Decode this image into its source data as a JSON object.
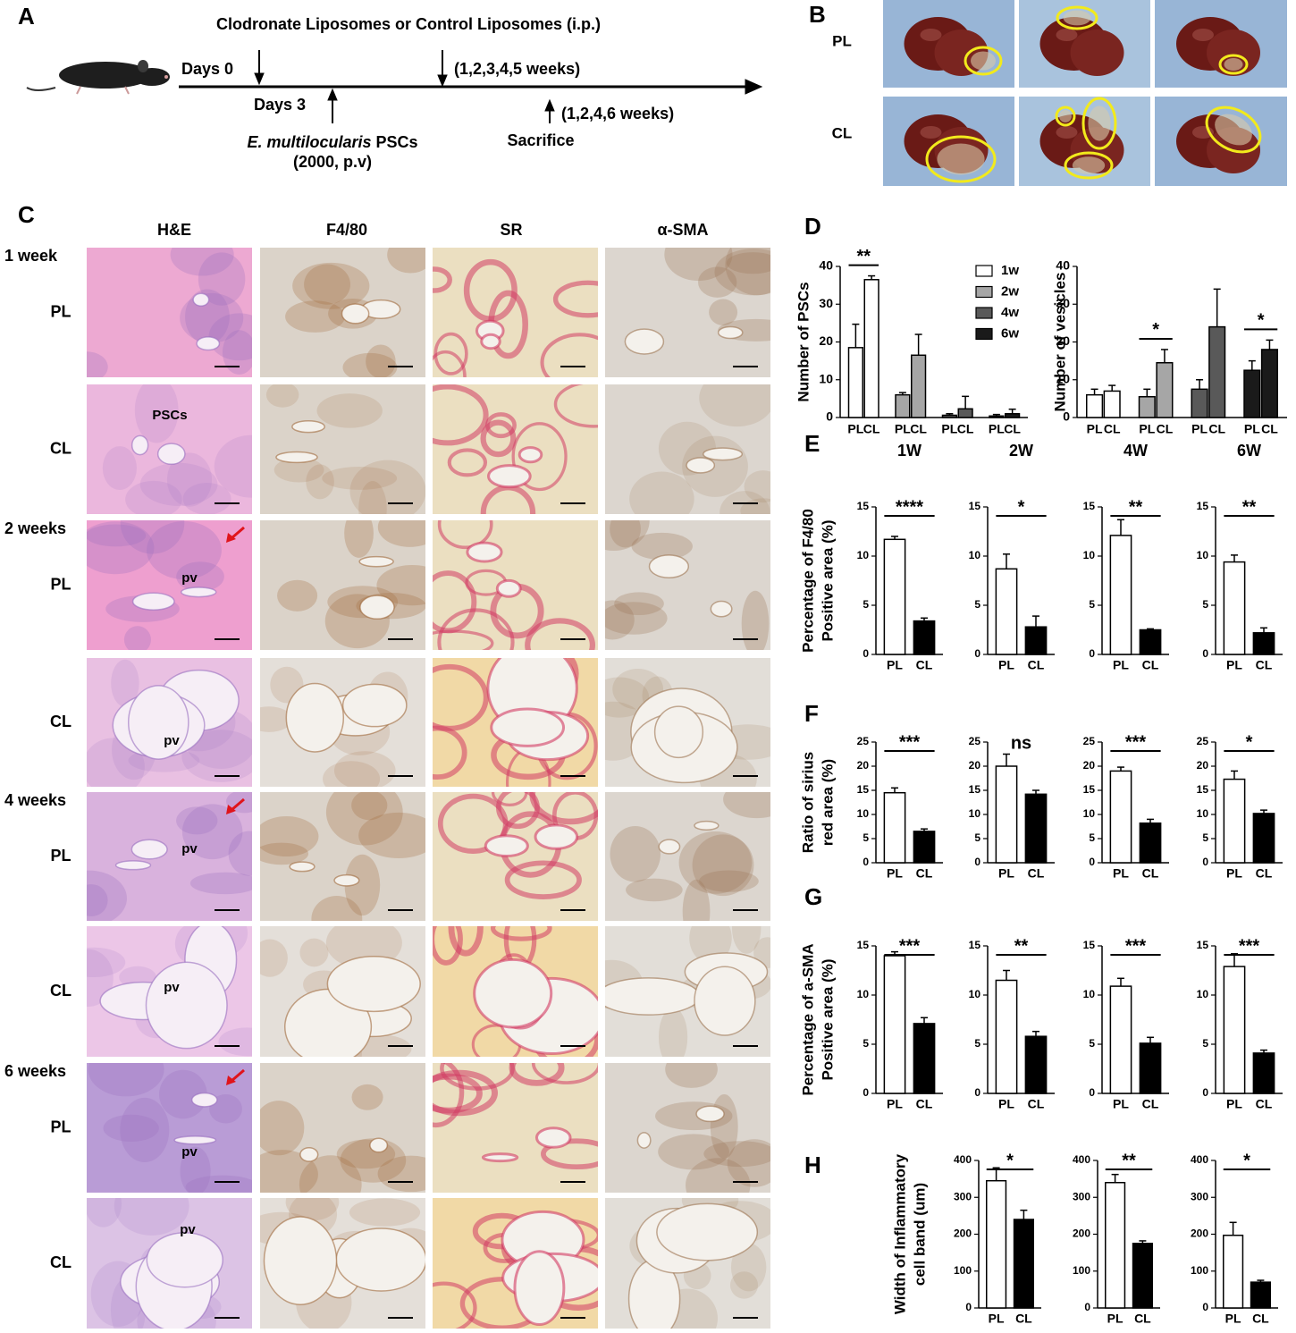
{
  "panel_labels": [
    "A",
    "B",
    "C",
    "D",
    "E",
    "F",
    "G",
    "H"
  ],
  "timeline": {
    "treatment": "Clodronate Liposomes or Control Liposomes (i.p.)",
    "start": "Days 0",
    "treatment_repeat": "(1,2,3,4,5 weeks)",
    "infection_day": "Days 3",
    "parasite_species": "E. multilocularis",
    "parasite_stage": "PSCs",
    "parasite_dose": "(2000, p.v)",
    "sacrifice_times": "(1,2,4,6 weeks)",
    "sacrifice": "Sacrifice"
  },
  "photos": {
    "rows": [
      "PL",
      "CL"
    ]
  },
  "histology": {
    "columns": [
      "H&E",
      "F4/80",
      "SR",
      "α-SMA"
    ],
    "timepoints": [
      {
        "label": "1 week",
        "groups": [
          {
            "name": "PL"
          },
          {
            "name": "CL",
            "tissue_label": "PSCs"
          }
        ]
      },
      {
        "label": "2 weeks",
        "groups": [
          {
            "name": "PL",
            "tissue_label": "pv"
          },
          {
            "name": "CL",
            "tissue_label": "pv"
          }
        ]
      },
      {
        "label": "4 weeks",
        "groups": [
          {
            "name": "PL",
            "tissue_label": "pv"
          },
          {
            "name": "CL",
            "tissue_label": "pv"
          }
        ]
      },
      {
        "label": "6 weeks",
        "groups": [
          {
            "name": "PL",
            "tissue_label": "pv"
          },
          {
            "name": "CL",
            "tissue_label": "pv"
          }
        ]
      }
    ]
  },
  "chart_data": [
    {
      "type": "grouped_bar",
      "ylabel": [
        "Number of PSCs"
      ],
      "categories": [
        "PL",
        "CL"
      ],
      "ylim": [
        0,
        40
      ],
      "yticks": [
        0,
        10,
        20,
        30,
        40
      ],
      "legend": true,
      "series": [
        {
          "name": "1w",
          "color": "#ffffff",
          "values": [
            18.5,
            36.5
          ],
          "errors": [
            6.2,
            1
          ]
        },
        {
          "name": "2w",
          "color": "#a6a6a6",
          "values": [
            6,
            16.5
          ],
          "errors": [
            0.6,
            5.5
          ]
        },
        {
          "name": "4w",
          "color": "#595959",
          "values": [
            0.6,
            2.3
          ],
          "errors": [
            0.4,
            3.3
          ]
        },
        {
          "name": "6w",
          "color": "#1a1a1a",
          "values": [
            0.4,
            1
          ],
          "errors": [
            0.4,
            1.2
          ]
        }
      ],
      "significance": [
        {
          "text": "**",
          "group": 0
        }
      ]
    },
    {
      "type": "grouped_bar",
      "ylabel": [
        "Number of  vesicles"
      ],
      "categories": [
        "PL",
        "CL"
      ],
      "ylim": [
        0,
        40
      ],
      "yticks": [
        0,
        10,
        20,
        30,
        40
      ],
      "series": [
        {
          "color": "#ffffff",
          "values": [
            6,
            7
          ],
          "errors": [
            1.5,
            1.5
          ]
        },
        {
          "color": "#a6a6a6",
          "values": [
            5.5,
            14.5
          ],
          "errors": [
            2,
            3.5
          ]
        },
        {
          "color": "#595959",
          "values": [
            7.5,
            24
          ],
          "errors": [
            2.5,
            10
          ]
        },
        {
          "color": "#1a1a1a",
          "values": [
            12.5,
            18
          ],
          "errors": [
            2.5,
            2.5
          ]
        }
      ],
      "significance": [
        {
          "text": "*",
          "group": 1
        },
        {
          "text": "*",
          "group": 3
        }
      ]
    },
    {
      "type": "bar",
      "title": "1W",
      "ylabel": [
        "Percentage of F4/80",
        "Positive area (%)"
      ],
      "categories": [
        "PL",
        "CL"
      ],
      "values": [
        11.7,
        3.4
      ],
      "errors": [
        0.3,
        0.3
      ],
      "colors": [
        "#ffffff",
        "#000000"
      ],
      "ylim": [
        0,
        15
      ],
      "yticks": [
        0,
        5,
        10,
        15
      ],
      "significance": "****"
    },
    {
      "type": "bar",
      "title": "2W",
      "categories": [
        "PL",
        "CL"
      ],
      "values": [
        8.7,
        2.8
      ],
      "errors": [
        1.5,
        1.1
      ],
      "colors": [
        "#ffffff",
        "#000000"
      ],
      "ylim": [
        0,
        15
      ],
      "yticks": [
        0,
        5,
        10,
        15
      ],
      "significance": "*"
    },
    {
      "type": "bar",
      "title": "4W",
      "categories": [
        "PL",
        "CL"
      ],
      "values": [
        12.1,
        2.5
      ],
      "errors": [
        1.6,
        0.1
      ],
      "colors": [
        "#ffffff",
        "#000000"
      ],
      "ylim": [
        0,
        15
      ],
      "yticks": [
        0,
        5,
        10,
        15
      ],
      "significance": "**"
    },
    {
      "type": "bar",
      "title": "6W",
      "categories": [
        "PL",
        "CL"
      ],
      "values": [
        9.4,
        2.2
      ],
      "errors": [
        0.7,
        0.5
      ],
      "colors": [
        "#ffffff",
        "#000000"
      ],
      "ylim": [
        0,
        15
      ],
      "yticks": [
        0,
        5,
        10,
        15
      ],
      "significance": "**"
    },
    {
      "type": "bar",
      "ylabel": [
        "Ratio of sirius",
        "red area (%)"
      ],
      "categories": [
        "PL",
        "CL"
      ],
      "values": [
        14.5,
        6.5
      ],
      "errors": [
        1,
        0.5
      ],
      "colors": [
        "#ffffff",
        "#000000"
      ],
      "ylim": [
        0,
        25
      ],
      "yticks": [
        0,
        5,
        10,
        15,
        20,
        25
      ],
      "significance": "***"
    },
    {
      "type": "bar",
      "categories": [
        "PL",
        "CL"
      ],
      "values": [
        20,
        14.2
      ],
      "errors": [
        2.5,
        0.8
      ],
      "colors": [
        "#ffffff",
        "#000000"
      ],
      "ylim": [
        0,
        25
      ],
      "yticks": [
        0,
        5,
        10,
        15,
        20,
        25
      ],
      "significance": "ns",
      "significance_line": false
    },
    {
      "type": "bar",
      "categories": [
        "PL",
        "CL"
      ],
      "values": [
        19,
        8.2
      ],
      "errors": [
        0.8,
        0.8
      ],
      "colors": [
        "#ffffff",
        "#000000"
      ],
      "ylim": [
        0,
        25
      ],
      "yticks": [
        0,
        5,
        10,
        15,
        20,
        25
      ],
      "significance": "***"
    },
    {
      "type": "bar",
      "categories": [
        "PL",
        "CL"
      ],
      "values": [
        17.3,
        10.2
      ],
      "errors": [
        1.7,
        0.7
      ],
      "colors": [
        "#ffffff",
        "#000000"
      ],
      "ylim": [
        0,
        25
      ],
      "yticks": [
        0,
        5,
        10,
        15,
        20,
        25
      ],
      "significance": "*"
    },
    {
      "type": "bar",
      "ylabel": [
        "Percentage of a-SMA",
        "Positive area (%)"
      ],
      "categories": [
        "PL",
        "CL"
      ],
      "values": [
        14,
        7.1
      ],
      "errors": [
        0.4,
        0.6
      ],
      "colors": [
        "#ffffff",
        "#000000"
      ],
      "ylim": [
        0,
        15
      ],
      "yticks": [
        0,
        5,
        10,
        15
      ],
      "significance": "***"
    },
    {
      "type": "bar",
      "categories": [
        "PL",
        "CL"
      ],
      "values": [
        11.5,
        5.8
      ],
      "errors": [
        1,
        0.5
      ],
      "colors": [
        "#ffffff",
        "#000000"
      ],
      "ylim": [
        0,
        15
      ],
      "yticks": [
        0,
        5,
        10,
        15
      ],
      "significance": "**"
    },
    {
      "type": "bar",
      "categories": [
        "PL",
        "CL"
      ],
      "values": [
        10.9,
        5.1
      ],
      "errors": [
        0.8,
        0.6
      ],
      "colors": [
        "#ffffff",
        "#000000"
      ],
      "ylim": [
        0,
        15
      ],
      "yticks": [
        0,
        5,
        10,
        15
      ],
      "significance": "***"
    },
    {
      "type": "bar",
      "categories": [
        "PL",
        "CL"
      ],
      "values": [
        12.9,
        4.1
      ],
      "errors": [
        1.3,
        0.3
      ],
      "colors": [
        "#ffffff",
        "#000000"
      ],
      "ylim": [
        0,
        15
      ],
      "yticks": [
        0,
        5,
        10,
        15
      ],
      "significance": "***"
    },
    {
      "type": "bar",
      "ylabel": [
        "Width of Inflammatory",
        "cell band  (um)"
      ],
      "categories": [
        "PL",
        "CL"
      ],
      "values": [
        345,
        240
      ],
      "errors": [
        35,
        25
      ],
      "colors": [
        "#ffffff",
        "#000000"
      ],
      "ylim": [
        0,
        400
      ],
      "yticks": [
        0,
        100,
        200,
        300,
        400
      ],
      "significance": "*"
    },
    {
      "type": "bar",
      "categories": [
        "PL",
        "CL"
      ],
      "values": [
        340,
        175
      ],
      "errors": [
        22,
        7
      ],
      "colors": [
        "#ffffff",
        "#000000"
      ],
      "ylim": [
        0,
        400
      ],
      "yticks": [
        0,
        100,
        200,
        300,
        400
      ],
      "significance": "**"
    },
    {
      "type": "bar",
      "categories": [
        "PL",
        "CL"
      ],
      "values": [
        197,
        70
      ],
      "errors": [
        35,
        5
      ],
      "colors": [
        "#ffffff",
        "#000000"
      ],
      "ylim": [
        0,
        400
      ],
      "yticks": [
        0,
        100,
        200,
        300,
        400
      ],
      "significance": "*"
    }
  ]
}
